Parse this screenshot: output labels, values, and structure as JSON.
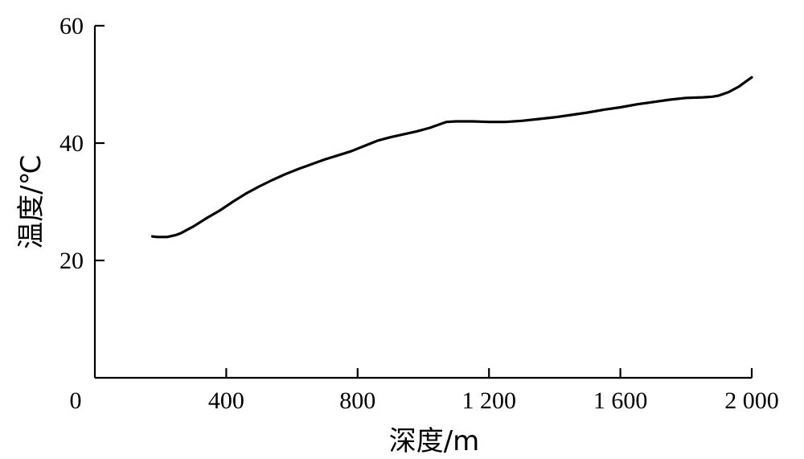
{
  "chart_data": {
    "type": "line",
    "title": "",
    "xlabel": "深度/m",
    "ylabel": "温度/℃",
    "xlim": [
      0,
      2000
    ],
    "ylim": [
      0,
      60
    ],
    "x_ticks": [
      {
        "value": 0,
        "label": "0"
      },
      {
        "value": 400,
        "label": "400"
      },
      {
        "value": 800,
        "label": "800"
      },
      {
        "value": 1200,
        "label": "1 200"
      },
      {
        "value": 1600,
        "label": "1 600"
      },
      {
        "value": 2000,
        "label": "2 000"
      }
    ],
    "y_ticks": [
      {
        "value": 20,
        "label": "20"
      },
      {
        "value": 40,
        "label": "40"
      },
      {
        "value": 60,
        "label": "60"
      }
    ],
    "grid": false,
    "legend": "none",
    "series": [
      {
        "x": [
          175,
          190,
          220,
          245,
          260,
          300,
          340,
          380,
          420,
          460,
          500,
          540,
          580,
          620,
          660,
          700,
          740,
          780,
          820,
          860,
          900,
          940,
          980,
          1020,
          1050,
          1070,
          1100,
          1150,
          1200,
          1250,
          1300,
          1350,
          1400,
          1450,
          1500,
          1550,
          1600,
          1650,
          1700,
          1750,
          1800,
          1850,
          1880,
          1900,
          1930,
          1960,
          1980,
          2000
        ],
        "y": [
          24.1,
          24.0,
          24.0,
          24.3,
          24.6,
          25.8,
          27.2,
          28.5,
          30.0,
          31.4,
          32.6,
          33.7,
          34.7,
          35.6,
          36.4,
          37.2,
          37.9,
          38.6,
          39.5,
          40.4,
          41.0,
          41.5,
          42.0,
          42.6,
          43.2,
          43.6,
          43.7,
          43.7,
          43.6,
          43.6,
          43.8,
          44.1,
          44.4,
          44.8,
          45.2,
          45.7,
          46.1,
          46.6,
          47.0,
          47.4,
          47.7,
          47.8,
          47.9,
          48.1,
          48.7,
          49.6,
          50.4,
          51.2
        ]
      }
    ],
    "colors": {
      "line": "#000000",
      "axis": "#000000",
      "background": "#ffffff"
    }
  }
}
